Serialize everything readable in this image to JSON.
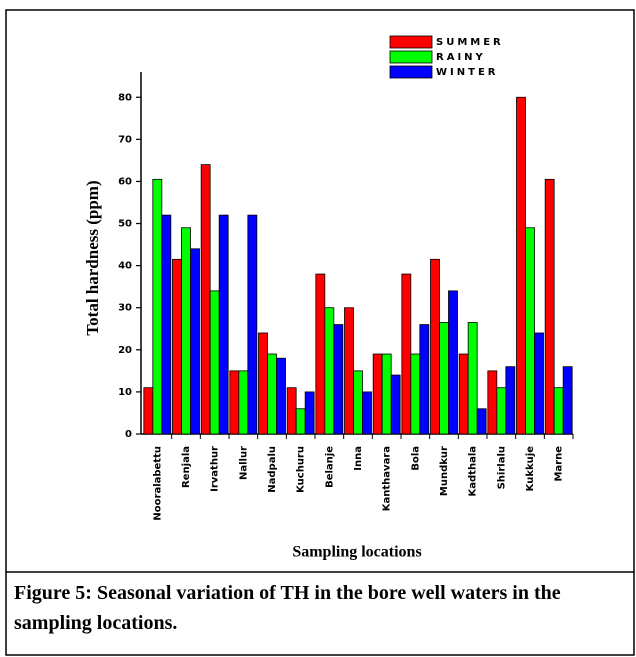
{
  "chart_data": {
    "type": "bar",
    "x_label": "Sampling locations",
    "y_label": "Total hardness (ppm)",
    "caption": "Figure 5: Seasonal variation of TH in the bore well waters in the sampling locations.",
    "categories": [
      "Nooralabettu",
      "Renjala",
      "Irvathur",
      "Nallur",
      "Nadpalu",
      "Kuchuru",
      "Belanje",
      "Inna",
      "Kanthavara",
      "Bola",
      "Mundkur",
      "Kadthala",
      "Shirlalu",
      "Kukkuje",
      "Marne"
    ],
    "series": [
      {
        "name": "SUMMER",
        "color": "#ff0000",
        "values": [
          11,
          41.5,
          64,
          15,
          24,
          11,
          38,
          30,
          19,
          38,
          41.5,
          19,
          15,
          80,
          60.5
        ]
      },
      {
        "name": "RAINY",
        "color": "#00ff00",
        "values": [
          60.5,
          49,
          34,
          15,
          19,
          6,
          30,
          15,
          19,
          19,
          26.5,
          26.5,
          11,
          49,
          11
        ]
      },
      {
        "name": "WINTER",
        "color": "#0000ff",
        "values": [
          52,
          44,
          52,
          52,
          18,
          10,
          26,
          10,
          14,
          26,
          34,
          6,
          16,
          24,
          16
        ]
      }
    ],
    "ylim": [
      0,
      86
    ],
    "yticks": [
      0,
      10,
      20,
      30,
      40,
      50,
      60,
      70,
      80
    ],
    "legend": "top-right"
  }
}
